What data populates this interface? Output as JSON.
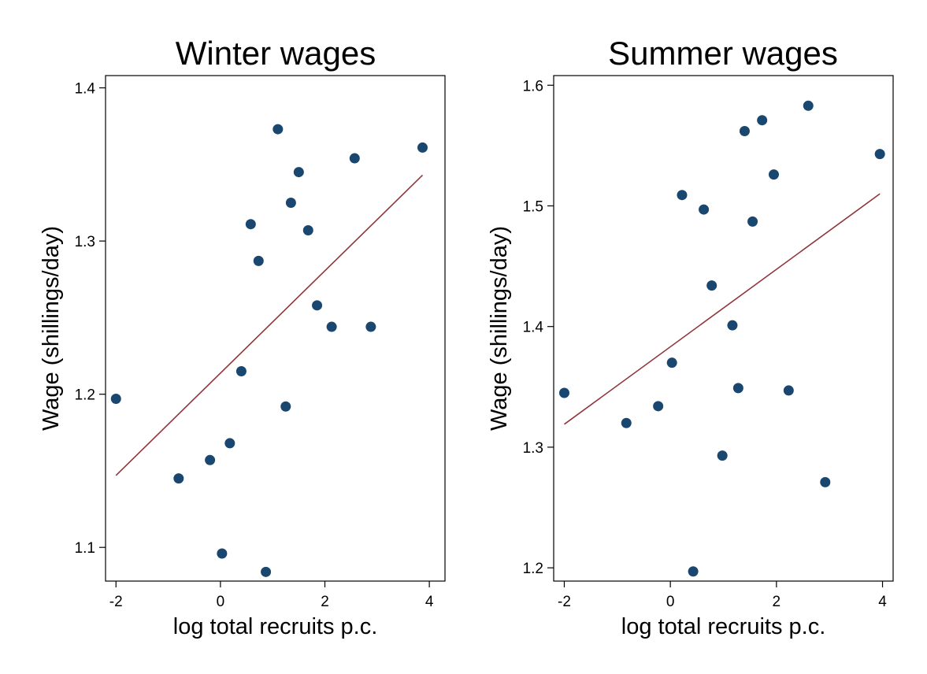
{
  "chart_data": [
    {
      "type": "scatter",
      "title": "Winter wages",
      "xlabel": "log total recruits p.c.",
      "ylabel": "Wage (shillings/day)",
      "xlim": [
        -2.2,
        4.3
      ],
      "ylim": [
        1.078,
        1.408
      ],
      "xticks": [
        "-2",
        "0",
        "2",
        "4"
      ],
      "yticks": [
        "1.1",
        "1.2",
        "1.3",
        "1.4"
      ],
      "grid": false,
      "marker_color": "#1a476f",
      "fit_color": "#90353b",
      "points": [
        {
          "x": -2.0,
          "y": 1.197
        },
        {
          "x": -0.8,
          "y": 1.145
        },
        {
          "x": -0.2,
          "y": 1.157
        },
        {
          "x": 0.03,
          "y": 1.096
        },
        {
          "x": 0.18,
          "y": 1.168
        },
        {
          "x": 0.4,
          "y": 1.215
        },
        {
          "x": 0.58,
          "y": 1.311
        },
        {
          "x": 0.73,
          "y": 1.287
        },
        {
          "x": 0.87,
          "y": 1.084
        },
        {
          "x": 1.1,
          "y": 1.373
        },
        {
          "x": 1.25,
          "y": 1.192
        },
        {
          "x": 1.35,
          "y": 1.325
        },
        {
          "x": 1.5,
          "y": 1.345
        },
        {
          "x": 1.68,
          "y": 1.307
        },
        {
          "x": 1.85,
          "y": 1.258
        },
        {
          "x": 2.13,
          "y": 1.244
        },
        {
          "x": 2.57,
          "y": 1.354
        },
        {
          "x": 2.88,
          "y": 1.244
        },
        {
          "x": 3.87,
          "y": 1.361
        }
      ],
      "fit_line": {
        "x": [
          -2.0,
          3.87
        ],
        "y": [
          1.147,
          1.343
        ]
      }
    },
    {
      "type": "scatter",
      "title": "Summer wages",
      "xlabel": "log total recruits p.c.",
      "ylabel": "Wage (shillings/day)",
      "xlim": [
        -2.2,
        4.2
      ],
      "ylim": [
        1.189,
        1.608
      ],
      "xticks": [
        "-2",
        "0",
        "2",
        "4"
      ],
      "yticks": [
        "1.2",
        "1.3",
        "1.4",
        "1.5",
        "1.6"
      ],
      "grid": false,
      "marker_color": "#1a476f",
      "fit_color": "#90353b",
      "points": [
        {
          "x": -2.0,
          "y": 1.345
        },
        {
          "x": -0.83,
          "y": 1.32
        },
        {
          "x": -0.23,
          "y": 1.334
        },
        {
          "x": 0.03,
          "y": 1.37
        },
        {
          "x": 0.22,
          "y": 1.509
        },
        {
          "x": 0.43,
          "y": 1.197
        },
        {
          "x": 0.63,
          "y": 1.497
        },
        {
          "x": 0.78,
          "y": 1.434
        },
        {
          "x": 0.98,
          "y": 1.293
        },
        {
          "x": 1.17,
          "y": 1.401
        },
        {
          "x": 1.28,
          "y": 1.349
        },
        {
          "x": 1.4,
          "y": 1.562
        },
        {
          "x": 1.55,
          "y": 1.487
        },
        {
          "x": 1.73,
          "y": 1.571
        },
        {
          "x": 1.95,
          "y": 1.526
        },
        {
          "x": 2.23,
          "y": 1.347
        },
        {
          "x": 2.6,
          "y": 1.583
        },
        {
          "x": 2.92,
          "y": 1.271
        },
        {
          "x": 3.95,
          "y": 1.543
        }
      ],
      "fit_line": {
        "x": [
          -2.0,
          3.95
        ],
        "y": [
          1.319,
          1.51
        ]
      }
    }
  ]
}
